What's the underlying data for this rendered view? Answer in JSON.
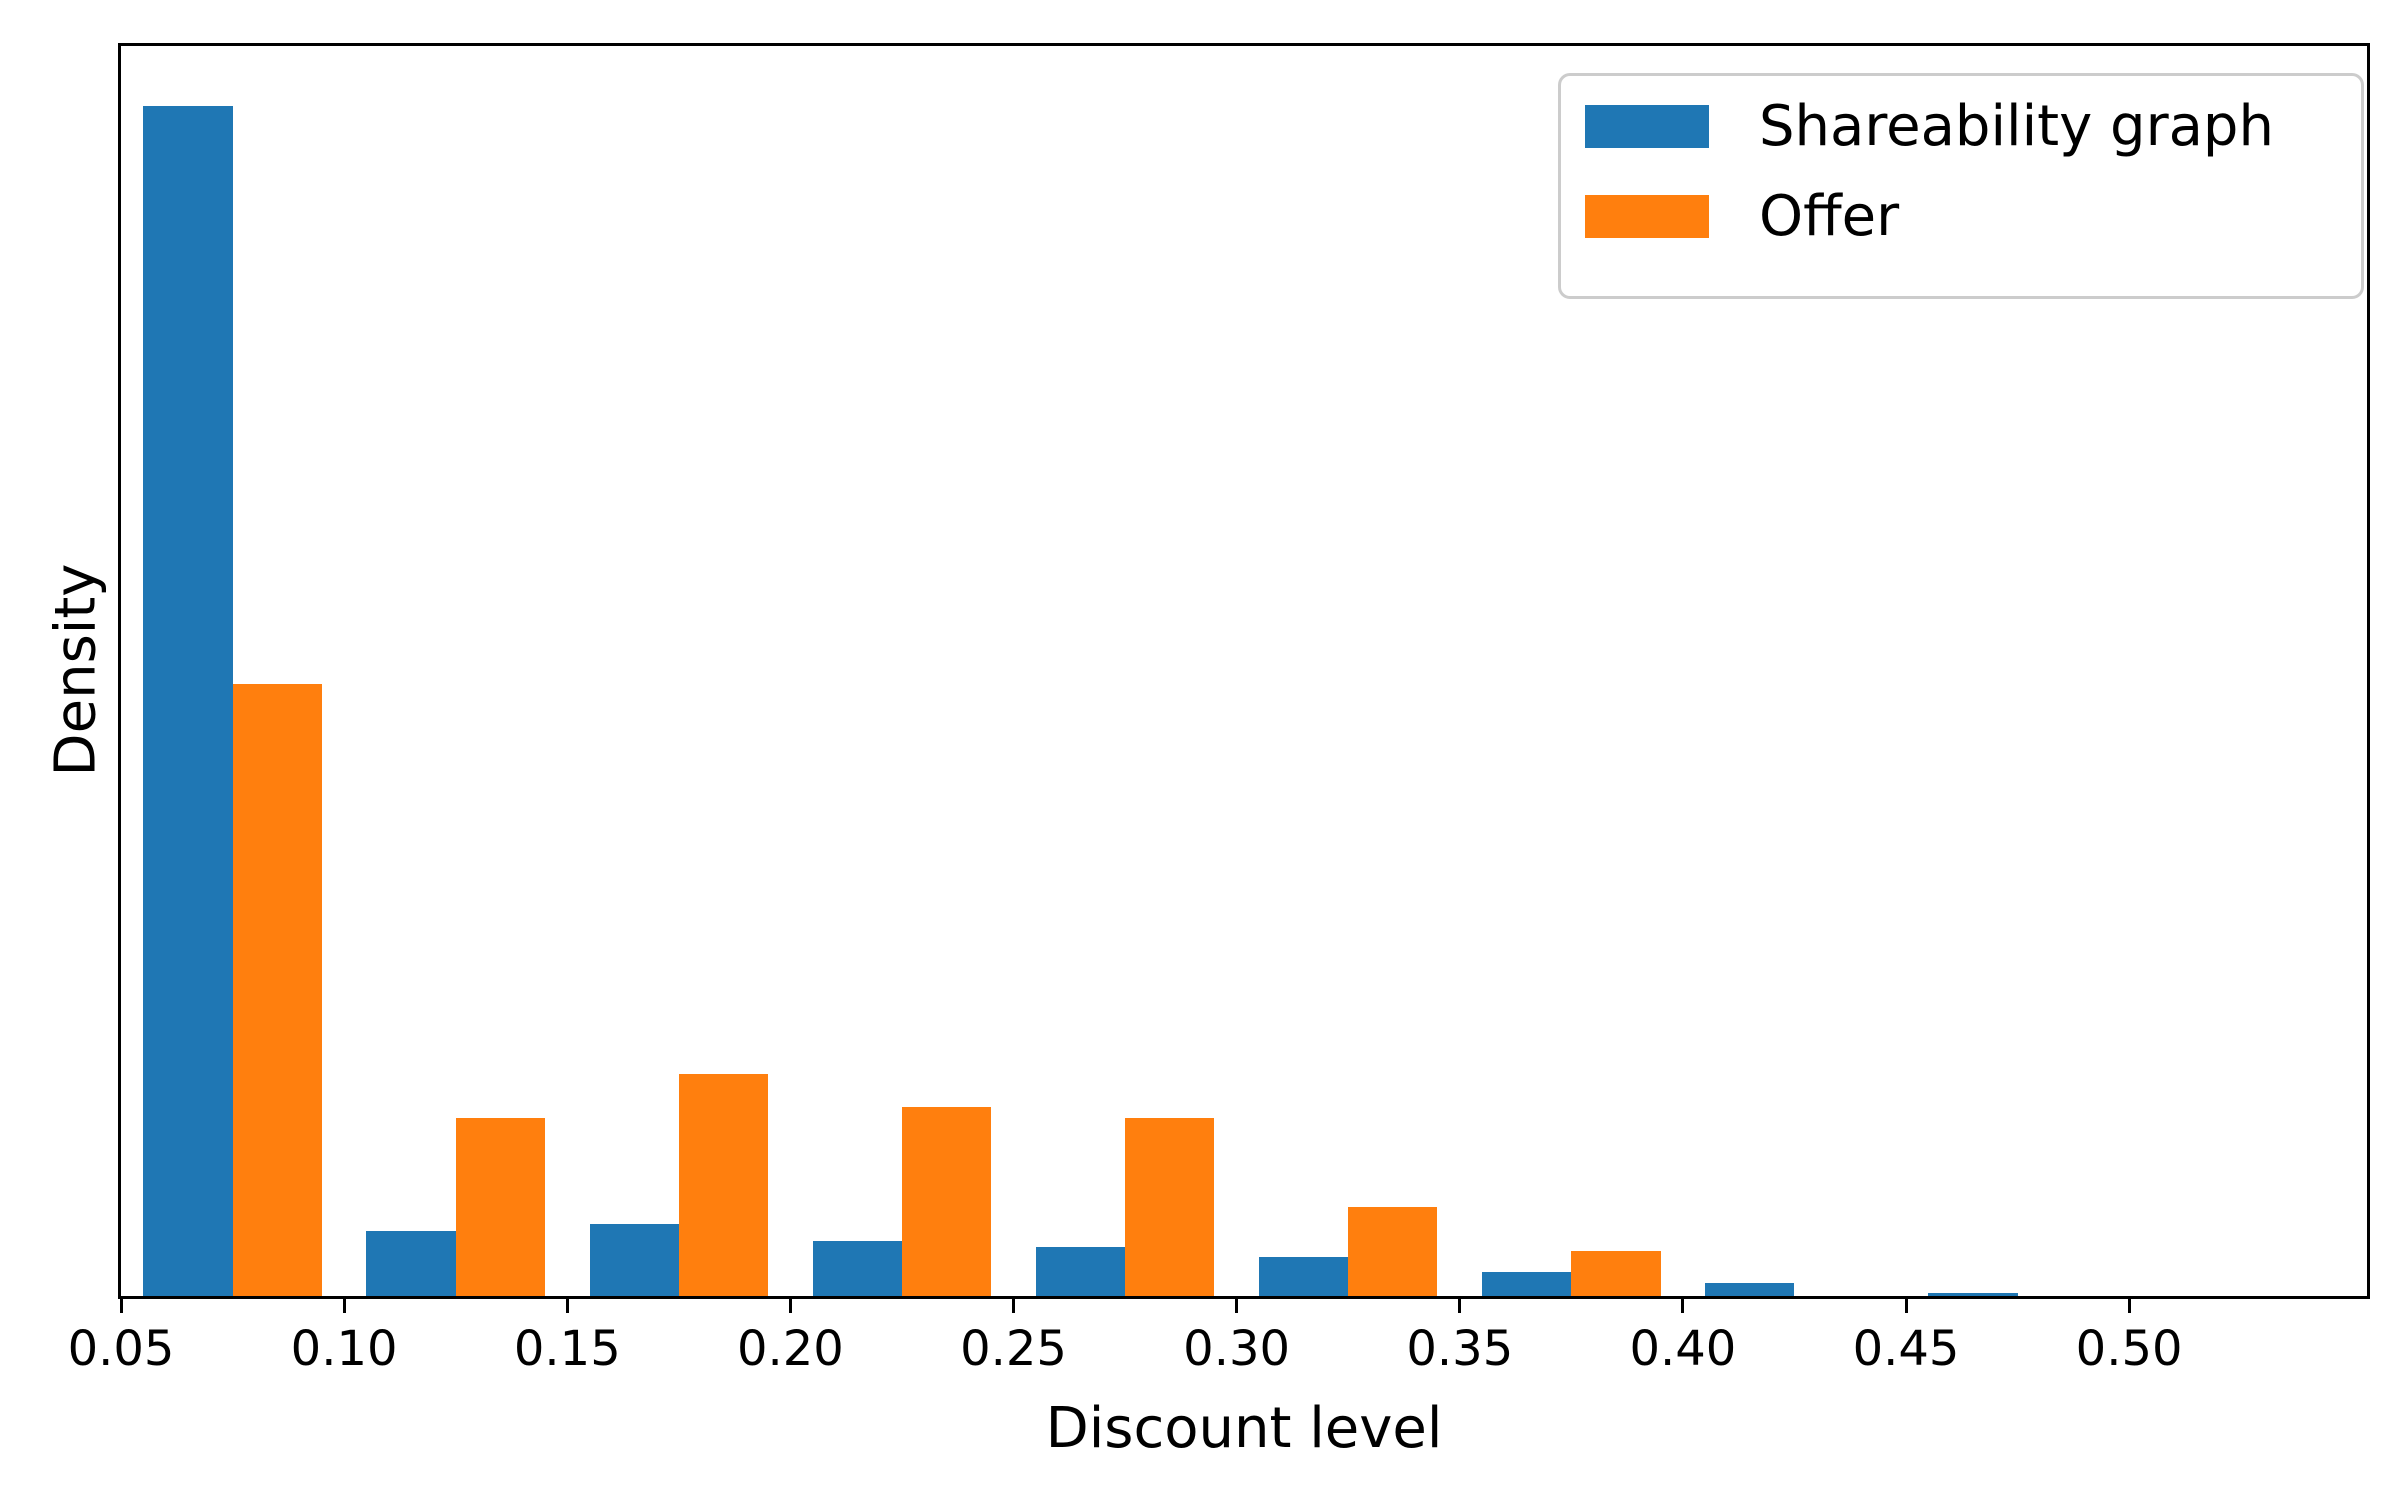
{
  "figure": {
    "background": "#ffffff",
    "spine_color": "#000000",
    "legend_border_color": "#cccccc"
  },
  "chart_data": {
    "type": "bar",
    "subtype": "grouped-density-histogram",
    "title": "",
    "xlabel": "Discount level",
    "ylabel": "Density",
    "grid": false,
    "legend_position": "upper right",
    "xlim": [
      0.05,
      0.5533
    ],
    "ylim": [
      0,
      16.55
    ],
    "bin_edges": [
      0.05,
      0.1,
      0.15,
      0.2,
      0.25,
      0.3,
      0.35,
      0.4,
      0.45,
      0.5,
      0.55
    ],
    "bar_group_fill_fraction": 0.8,
    "series": [
      {
        "name": "Shareability graph",
        "color": "#1f77b4",
        "values": [
          15.76,
          0.86,
          0.95,
          0.73,
          0.65,
          0.52,
          0.32,
          0.17,
          0.04,
          0
        ]
      },
      {
        "name": "Offer",
        "color": "#ff7f0e",
        "values": [
          8.1,
          2.36,
          2.94,
          2.5,
          2.36,
          1.18,
          0.6,
          0,
          0,
          0
        ]
      }
    ],
    "x_ticks": [
      {
        "value": 0.05,
        "label": "0.05"
      },
      {
        "value": 0.1,
        "label": "0.10"
      },
      {
        "value": 0.15,
        "label": "0.15"
      },
      {
        "value": 0.2,
        "label": "0.20"
      },
      {
        "value": 0.25,
        "label": "0.25"
      },
      {
        "value": 0.3,
        "label": "0.30"
      },
      {
        "value": 0.35,
        "label": "0.35"
      },
      {
        "value": 0.4,
        "label": "0.40"
      },
      {
        "value": 0.45,
        "label": "0.45"
      },
      {
        "value": 0.5,
        "label": "0.50"
      }
    ],
    "y_ticks": []
  }
}
